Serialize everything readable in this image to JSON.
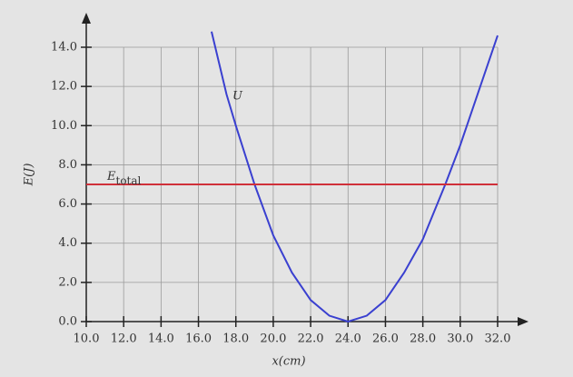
{
  "chart_data": {
    "type": "line",
    "xlabel": "x(cm)",
    "ylabel": "E(J)",
    "xlim": [
      10,
      32
    ],
    "ylim": [
      0,
      14
    ],
    "xticks": [
      {
        "value": 10,
        "label": "10.0"
      },
      {
        "value": 12,
        "label": "12.0"
      },
      {
        "value": 14,
        "label": "14.0"
      },
      {
        "value": 16,
        "label": "16.0"
      },
      {
        "value": 18,
        "label": "18.0"
      },
      {
        "value": 20,
        "label": "20.0"
      },
      {
        "value": 22,
        "label": "22.0"
      },
      {
        "value": 24,
        "label": "24.0"
      },
      {
        "value": 26,
        "label": "26.0"
      },
      {
        "value": 28,
        "label": "28.0"
      },
      {
        "value": 30,
        "label": "30.0"
      },
      {
        "value": 32,
        "label": "32.0"
      }
    ],
    "yticks": [
      {
        "value": 0,
        "label": "0.0"
      },
      {
        "value": 2,
        "label": "2.0"
      },
      {
        "value": 4,
        "label": "4.0"
      },
      {
        "value": 6,
        "label": "6.0"
      },
      {
        "value": 8,
        "label": "8.0"
      },
      {
        "value": 10,
        "label": "10.0"
      },
      {
        "value": 12,
        "label": "12.0"
      },
      {
        "value": 14,
        "label": "14.0"
      }
    ],
    "grid": true,
    "series": [
      {
        "name": "U",
        "color": "#3a40d0",
        "x": [
          16.7,
          17.5,
          18,
          19,
          20,
          21,
          22,
          23,
          24,
          25,
          26,
          27,
          28,
          29.2,
          30,
          31,
          32
        ],
        "values": [
          14.8,
          11.6,
          10,
          7,
          4.4,
          2.5,
          1.1,
          0.3,
          0,
          0.3,
          1.1,
          2.5,
          4.2,
          7,
          9,
          11.8,
          14.6
        ]
      },
      {
        "name": "E",
        "subscript": "total",
        "color": "#d0303a",
        "x": [
          10,
          32
        ],
        "values": [
          7,
          7
        ]
      }
    ]
  }
}
